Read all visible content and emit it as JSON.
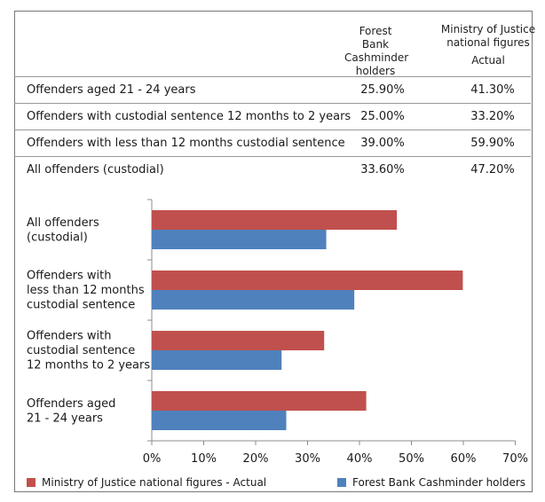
{
  "table": {
    "headers": {
      "col1": [
        "Forest Bank",
        "Cashminder",
        "holders"
      ],
      "col2": [
        "Ministry of Justice",
        "national figures",
        "Actual"
      ]
    },
    "rows": [
      {
        "label": "Offenders aged 21 - 24 years",
        "forest_bank": "25.90%",
        "moj": "41.30%"
      },
      {
        "label": "Offenders with custodial sentence 12 months to 2 years",
        "forest_bank": "25.00%",
        "moj": "33.20%"
      },
      {
        "label": "Offenders with less than 12 months custodial sentence",
        "forest_bank": "39.00%",
        "moj": "59.90%"
      },
      {
        "label": "All offenders (custodial)",
        "forest_bank": "33.60%",
        "moj": "47.20%"
      }
    ]
  },
  "chart_data": {
    "type": "bar",
    "orientation": "horizontal",
    "categories": [
      [
        "All offenders",
        "(custodial)"
      ],
      [
        "Offenders with",
        "less than 12 months",
        "custodial sentence"
      ],
      [
        "Offenders with",
        "custodial sentence",
        "12 months to 2 years"
      ],
      [
        "Offenders aged",
        "21 - 24 years"
      ]
    ],
    "series": [
      {
        "name": "Ministry of Justice national figures - Actual",
        "values": [
          47.2,
          59.9,
          33.2,
          41.3
        ],
        "color": "#c0504d"
      },
      {
        "name": "Forest Bank Cashminder holders",
        "values": [
          33.6,
          39.0,
          25.0,
          25.9
        ],
        "color": "#4f81bd"
      }
    ],
    "xlim": [
      0,
      70
    ],
    "xticks": [
      "0%",
      "10%",
      "20%",
      "30%",
      "40%",
      "50%",
      "60%",
      "70%"
    ],
    "grid": false,
    "legend_position": "bottom"
  }
}
